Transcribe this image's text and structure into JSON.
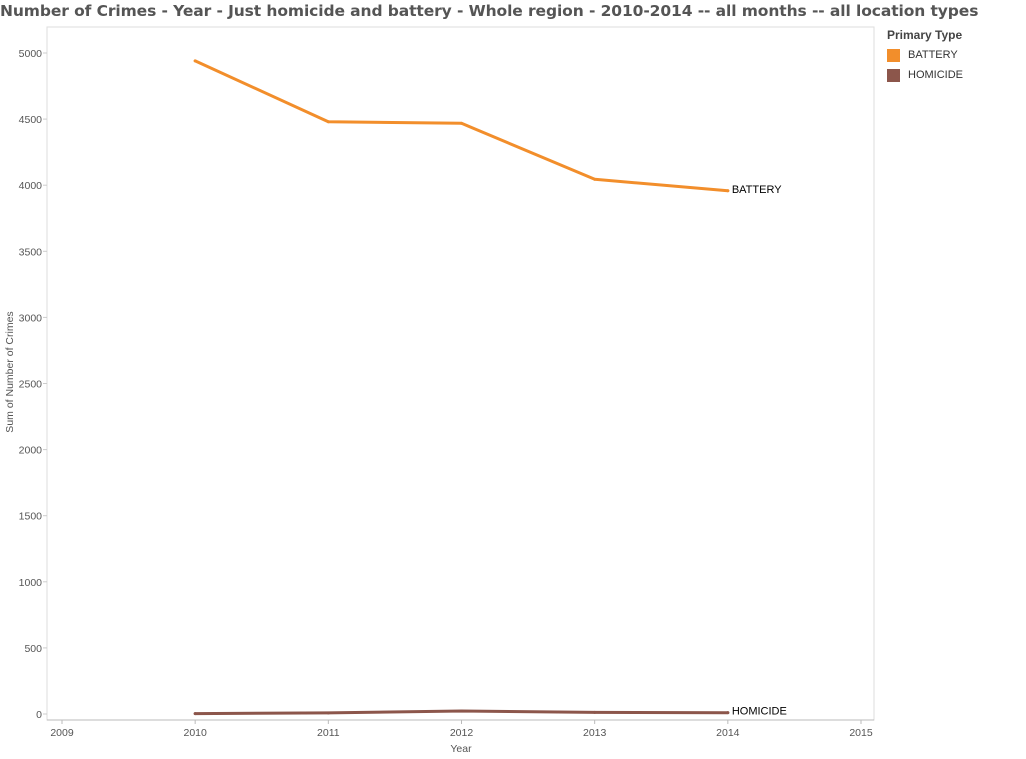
{
  "chart_data": {
    "type": "line",
    "title": "Number of Crimes - Year - Just homicide and battery - Whole region - 2010-2014 -- all months -- all location types",
    "xlabel": "Year",
    "ylabel": "Sum of Number of Crimes",
    "xlim": [
      2009,
      2015
    ],
    "ylim": [
      0,
      5000
    ],
    "xticks": [
      2009,
      2010,
      2011,
      2012,
      2013,
      2014,
      2015
    ],
    "yticks": [
      0,
      500,
      1000,
      1500,
      2000,
      2500,
      3000,
      3500,
      4000,
      4500,
      5000
    ],
    "x": [
      2010,
      2011,
      2012,
      2013,
      2014
    ],
    "series": [
      {
        "name": "BATTERY",
        "color": "#F28E2B",
        "values": [
          4940,
          4480,
          4468,
          4045,
          3958
        ]
      },
      {
        "name": "HOMICIDE",
        "color": "#8C564B",
        "values": [
          3,
          8,
          23,
          12,
          10
        ]
      }
    ],
    "legend": {
      "title": "Primary Type",
      "position": "right"
    },
    "grid": false
  }
}
